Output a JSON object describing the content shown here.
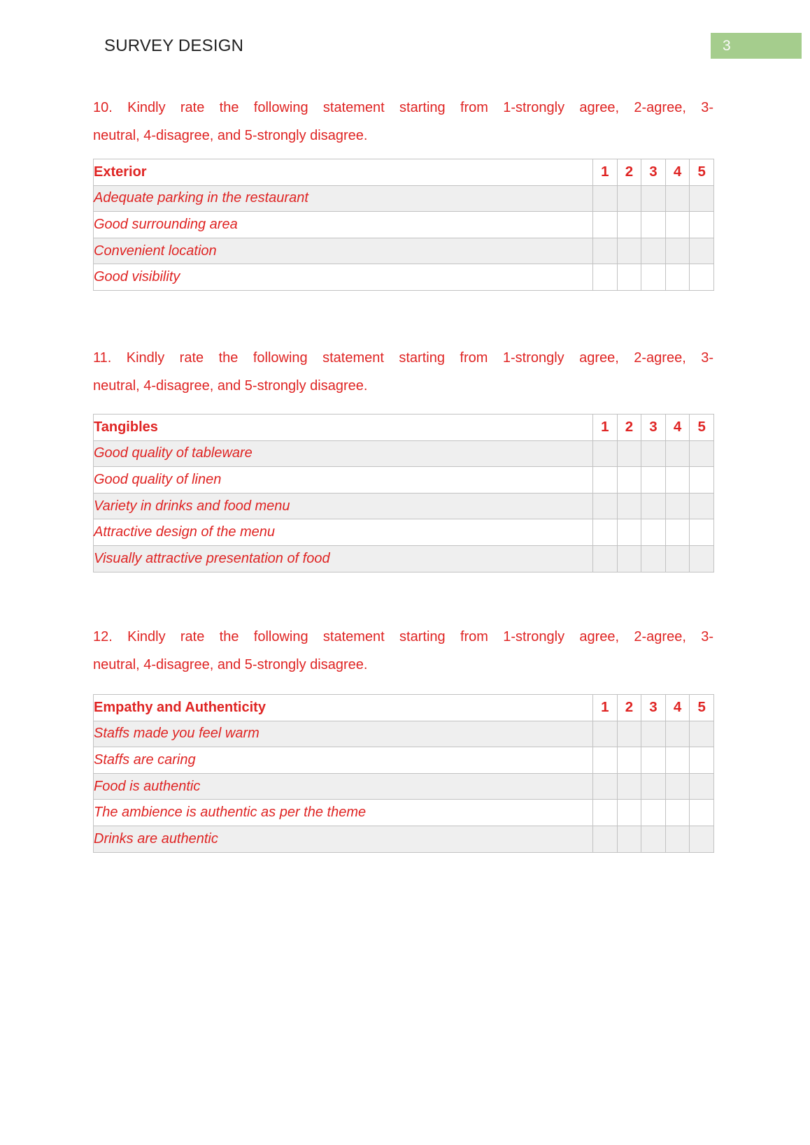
{
  "header": {
    "title": "SURVEY DESIGN",
    "page_number": "3"
  },
  "colors": {
    "accent_red": "#df2423",
    "page_badge_green": "#a5cd8d",
    "row_shade": "#efefef",
    "table_border": "#c2c2c2"
  },
  "questions": [
    {
      "number": "10",
      "lines": [
        "10. Kindly rate the following statement starting from 1-strongly agree, 2-agree, 3-",
        "neutral, 4-disagree, and 5-strongly disagree."
      ],
      "table": {
        "category": "Exterior",
        "scale": [
          "1",
          "2",
          "3",
          "4",
          "5"
        ],
        "rows": [
          "Adequate parking in the restaurant",
          "Good surrounding area",
          "Convenient location",
          "Good visibility"
        ]
      }
    },
    {
      "number": "11",
      "lines": [
        "11. Kindly rate the following statement starting from 1-strongly agree, 2-agree, 3-",
        "neutral, 4-disagree, and 5-strongly disagree."
      ],
      "table": {
        "category": "Tangibles",
        "scale": [
          "1",
          "2",
          "3",
          "4",
          "5"
        ],
        "rows": [
          "Good quality of tableware",
          "Good quality of linen",
          "Variety in drinks and food menu",
          "Attractive design of the menu",
          "Visually attractive presentation of food"
        ]
      }
    },
    {
      "number": "12",
      "lines": [
        "12. Kindly rate the following statement starting from 1-strongly agree, 2-agree, 3-",
        "neutral, 4-disagree, and 5-strongly disagree."
      ],
      "table": {
        "category": "Empathy and Authenticity",
        "scale": [
          "1",
          "2",
          "3",
          "4",
          "5"
        ],
        "rows": [
          "Staffs made you feel warm",
          "Staffs are caring",
          "Food is authentic",
          "The ambience is authentic as per the theme",
          "Drinks are authentic"
        ]
      }
    }
  ]
}
